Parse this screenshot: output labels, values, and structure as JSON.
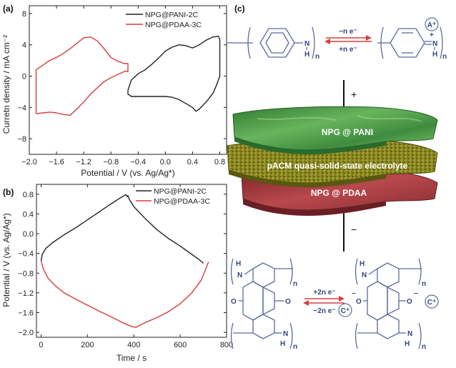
{
  "colors": {
    "black_series": "#222222",
    "red_series": "#d93a3a",
    "chem": "#34437a",
    "arrow": "#d64040",
    "pani": "#4b9a4a",
    "electrolyte": "#8c8b20",
    "pdaa": "#9b3a3e"
  },
  "chart_data": [
    {
      "type": "line",
      "panel_label": "(a)",
      "xlabel": "Potential / V (vs. Ag/Ag*)",
      "ylabel": "Curretn density / mA cm⁻²",
      "xlim": [
        -2.0,
        0.9
      ],
      "ylim": [
        -10,
        9
      ],
      "xticks": [
        -2.0,
        -1.6,
        -1.2,
        -0.8,
        -0.4,
        0.0,
        0.4,
        0.8
      ],
      "xtick_labels": [
        "−2.0",
        "−1.6",
        "−1.2",
        "−0.8",
        "−0.4",
        "0.0",
        "0.4",
        "0.8"
      ],
      "yticks": [
        -8,
        -4,
        0,
        4,
        8
      ],
      "ytick_labels": [
        "−8",
        "−4",
        "0",
        "4",
        "8"
      ],
      "legend_position": "top-right",
      "series": [
        {
          "name": "NPG@PANI-2C",
          "color": "#222222",
          "x": [
            -0.55,
            -0.5,
            -0.4,
            -0.3,
            -0.2,
            -0.1,
            0.0,
            0.1,
            0.2,
            0.3,
            0.4,
            0.5,
            0.6,
            0.7,
            0.78,
            0.8,
            0.8,
            0.75,
            0.7,
            0.6,
            0.5,
            0.45,
            0.4,
            0.3,
            0.2,
            0.1,
            0.0,
            -0.1,
            -0.2,
            -0.3,
            -0.4,
            -0.5,
            -0.55,
            -0.55
          ],
          "y": [
            -1.8,
            -0.5,
            0.3,
            0.8,
            1.5,
            2.3,
            3.2,
            3.7,
            4.0,
            3.9,
            3.6,
            4.0,
            4.6,
            5.0,
            5.1,
            4.7,
            0.0,
            -1.2,
            -2.2,
            -3.3,
            -4.2,
            -4.5,
            -4.0,
            -3.5,
            -3.0,
            -2.7,
            -2.6,
            -2.6,
            -2.6,
            -2.6,
            -2.6,
            -2.6,
            -2.3,
            -1.8
          ]
        },
        {
          "name": "NPG@PDAA-3C",
          "color": "#d93a3a",
          "x": [
            -1.9,
            -1.8,
            -1.7,
            -1.6,
            -1.5,
            -1.4,
            -1.3,
            -1.2,
            -1.1,
            -1.0,
            -0.9,
            -0.8,
            -0.7,
            -0.6,
            -0.55,
            -0.55,
            -0.6,
            -0.7,
            -0.8,
            -0.9,
            -1.0,
            -1.1,
            -1.2,
            -1.3,
            -1.4,
            -1.5,
            -1.6,
            -1.7,
            -1.8,
            -1.9,
            -1.9
          ],
          "y": [
            -4.8,
            -4.7,
            -4.6,
            -4.7,
            -4.9,
            -5.0,
            -4.2,
            -3.3,
            -2.3,
            -1.5,
            -0.7,
            -0.2,
            0.2,
            0.6,
            0.6,
            1.6,
            1.6,
            1.9,
            2.4,
            3.5,
            4.5,
            5.0,
            4.9,
            4.2,
            3.5,
            2.9,
            2.4,
            2.0,
            1.4,
            0.8,
            -4.8
          ]
        }
      ]
    },
    {
      "type": "line",
      "panel_label": "(b)",
      "xlabel": "Time / s",
      "ylabel": "Potential / V (vs. Ag/Ag*)",
      "xlim": [
        -20,
        800
      ],
      "ylim": [
        -2.1,
        1.0
      ],
      "xticks": [
        0,
        200,
        400,
        600,
        800
      ],
      "xtick_labels": [
        "0",
        "200",
        "400",
        "600",
        "800"
      ],
      "yticks": [
        0.8,
        0.4,
        0.0,
        -0.4,
        -0.8,
        -1.2,
        -1.6,
        -2.0
      ],
      "ytick_labels": [
        "0.8",
        "0.4",
        "0.0",
        "−0.4",
        "−0.8",
        "−1.2",
        "−1.6",
        "−2.0"
      ],
      "legend_position": "top-right",
      "series": [
        {
          "name": "NPG@PANI-2C",
          "color": "#222222",
          "x": [
            0,
            5,
            20,
            50,
            100,
            150,
            200,
            250,
            300,
            340,
            365,
            372,
            375,
            380,
            400,
            450,
            500,
            550,
            600,
            650,
            680,
            700
          ],
          "y": [
            -0.55,
            -0.42,
            -0.3,
            -0.18,
            -0.02,
            0.12,
            0.28,
            0.44,
            0.6,
            0.72,
            0.79,
            0.75,
            0.77,
            0.7,
            0.55,
            0.3,
            0.08,
            -0.1,
            -0.25,
            -0.42,
            -0.52,
            -0.6
          ]
        },
        {
          "name": "NPG@PDAA-3C",
          "color": "#d93a3a",
          "x": [
            0,
            10,
            30,
            60,
            100,
            150,
            200,
            250,
            300,
            350,
            390,
            410,
            420,
            450,
            500,
            550,
            600,
            650,
            690,
            710,
            722
          ],
          "y": [
            -0.55,
            -0.72,
            -0.9,
            -1.05,
            -1.2,
            -1.33,
            -1.45,
            -1.57,
            -1.68,
            -1.8,
            -1.88,
            -1.9,
            -1.87,
            -1.8,
            -1.7,
            -1.58,
            -1.42,
            -1.2,
            -0.95,
            -0.72,
            -0.57
          ]
        }
      ]
    }
  ],
  "panel_c": {
    "label": "(c)",
    "top_formula": {
      "nh_left": "N",
      "h_left": "H",
      "n_left": "n",
      "n_right": "N",
      "h_right": "H",
      "n_right_sub": "n",
      "plus_sign": "+",
      "ion": "A⁺",
      "arrow_top": "−n e⁻",
      "arrow_bottom": "+n e⁻"
    },
    "plus_terminal": "+",
    "minus_terminal": "−",
    "layers": {
      "top": "NPG @ PANI",
      "middle": "pACM quasi-solid-state electrolyte",
      "bottom": "NPG @ PDAA"
    },
    "bottom_formula": {
      "nh_top": "N",
      "h_top": "H",
      "n_top": "n",
      "o_left": "O",
      "o_right": "O",
      "nh_bottom": "N",
      "h_bottom": "H",
      "n_bottom": "n",
      "o_minus_left": "O",
      "o_minus_right": "O",
      "minus": "−",
      "cation": "C⁺",
      "arrow_top": "+2n e⁻",
      "arrow_bottom": "−2n e⁻",
      "nh_top_r": "N",
      "h_top_r": "H",
      "n_top_r": "n",
      "nh_bottom_r": "N",
      "h_bottom_r": "H",
      "n_bottom_r": "n"
    }
  }
}
